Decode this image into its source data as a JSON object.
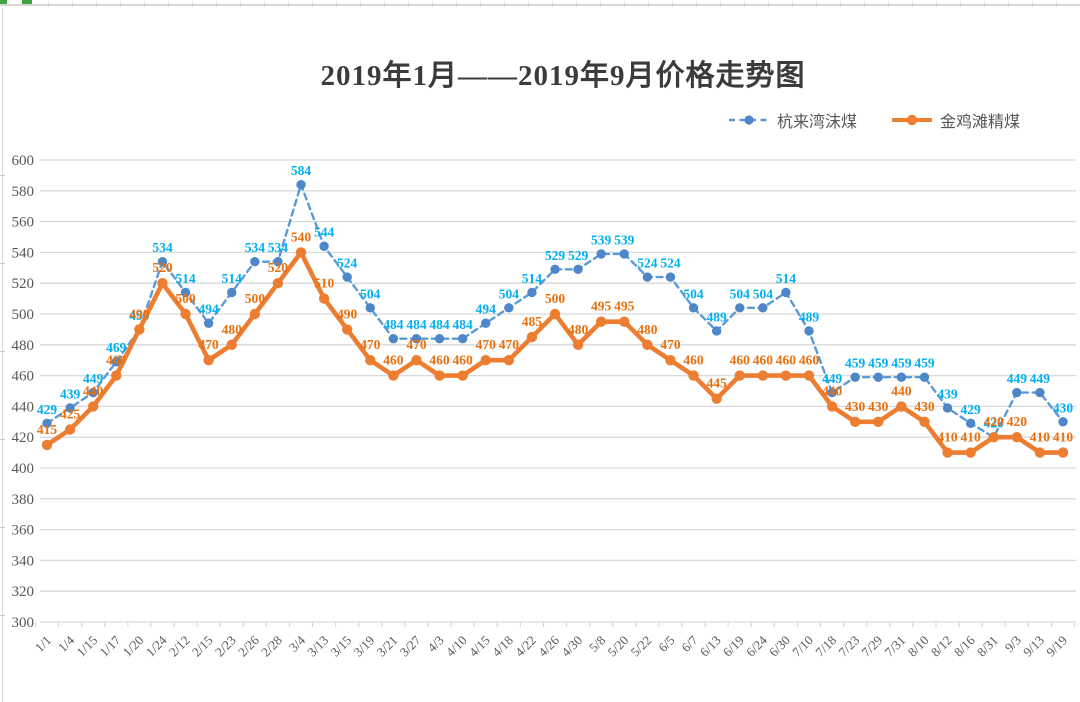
{
  "title": "2019年1月——2019年9月价格走势图",
  "legend": {
    "items": [
      {
        "label": "杭来湾沫煤"
      },
      {
        "label": "金鸡滩精煤"
      }
    ]
  },
  "colors": {
    "series1_line": "#5B9BD5",
    "series1_marker": "#4E87C8",
    "series1_label": "#00B0F0",
    "series2_line": "#ED7D31",
    "series2_marker": "#ED7D31",
    "series2_label": "#E8700E",
    "gridline": "#D9D9D9",
    "axis_text": "#595959",
    "title_text": "#3B3B3B"
  },
  "chart_data": {
    "type": "line",
    "title": "2019年1月——2019年9月价格走势图",
    "xlabel": "",
    "ylabel": "",
    "ylim": [
      300,
      600
    ],
    "ytick_step": 20,
    "grid": true,
    "legend_position": "top-right",
    "data_labels": true,
    "categories": [
      "1/1",
      "1/4",
      "1/15",
      "1/17",
      "1/20",
      "1/24",
      "2/12",
      "2/15",
      "2/23",
      "2/26",
      "2/28",
      "3/4",
      "3/13",
      "3/15",
      "3/19",
      "3/21",
      "3/27",
      "4/3",
      "4/10",
      "4/15",
      "4/18",
      "4/22",
      "4/26",
      "4/30",
      "5/8",
      "5/20",
      "5/22",
      "6/5",
      "6/7",
      "6/13",
      "6/19",
      "6/24",
      "6/30",
      "7/10",
      "7/18",
      "7/23",
      "7/29",
      "7/31",
      "8/10",
      "8/12",
      "8/16",
      "8/31",
      "9/3",
      "9/13",
      "9/19"
    ],
    "series": [
      {
        "name": "杭来湾沫煤",
        "style": "dashed",
        "marker": "circle",
        "values": [
          429,
          439,
          449,
          469,
          490,
          534,
          514,
          494,
          514,
          534,
          534,
          584,
          544,
          524,
          504,
          484,
          484,
          484,
          484,
          494,
          504,
          514,
          529,
          529,
          539,
          539,
          524,
          524,
          504,
          489,
          504,
          504,
          514,
          489,
          449,
          459,
          459,
          459,
          459,
          439,
          429,
          420,
          449,
          449,
          430
        ]
      },
      {
        "name": "金鸡滩精煤",
        "style": "solid",
        "marker": "circle",
        "values": [
          415,
          425,
          440,
          460,
          490,
          520,
          500,
          470,
          480,
          500,
          520,
          540,
          510,
          490,
          470,
          460,
          470,
          460,
          460,
          470,
          470,
          485,
          500,
          480,
          495,
          495,
          480,
          470,
          460,
          445,
          460,
          460,
          460,
          460,
          440,
          430,
          430,
          440,
          430,
          410,
          410,
          420,
          420,
          410,
          410
        ]
      }
    ]
  }
}
